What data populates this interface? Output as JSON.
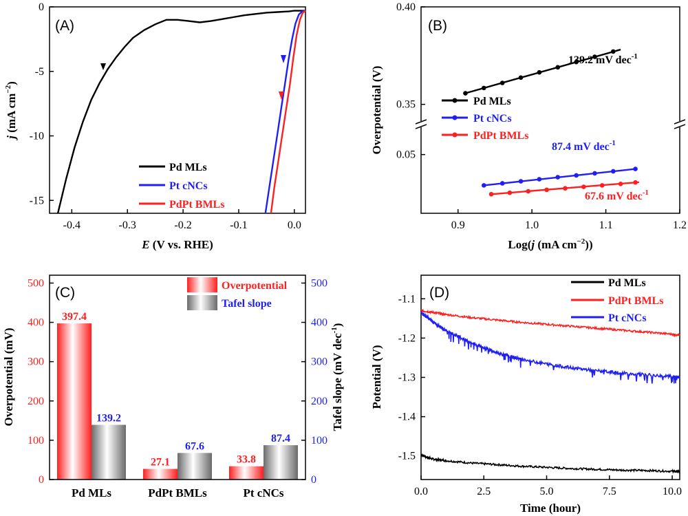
{
  "colors": {
    "black": "#000000",
    "blue": "#1f1ff5",
    "red": "#ff1f1f",
    "gray": "#707070"
  },
  "chart_data": [
    {
      "panel": "(A)",
      "type": "line",
      "xlabel_italic": "E",
      "xlabel_rest": " (V vs. RHE)",
      "ylabel_italic": "j",
      "ylabel_rest": " (mA cm",
      "ylabel_sup": "−2",
      "ylabel_close": ")",
      "xlim": [
        -0.44,
        0.02
      ],
      "ylim": [
        -16,
        0
      ],
      "xticks": [
        -0.4,
        -0.3,
        -0.2,
        -0.1,
        0.0
      ],
      "xtick_labels": [
        "-0.4",
        "-0.3",
        "-0.2",
        "-0.1",
        "0.0"
      ],
      "yticks": [
        0,
        -5,
        -10,
        -15
      ],
      "ytick_labels": [
        "0",
        "-5",
        "-10",
        "-15"
      ],
      "legend_position": "bottom-center",
      "series": [
        {
          "name": "Pd MLs",
          "color": "#000000",
          "x": [
            -0.425,
            -0.41,
            -0.395,
            -0.38,
            -0.365,
            -0.35,
            -0.335,
            -0.32,
            -0.305,
            -0.29,
            -0.27,
            -0.25,
            -0.23,
            -0.21,
            -0.19,
            -0.17,
            -0.15,
            -0.13,
            -0.11,
            -0.09,
            -0.07,
            -0.05,
            -0.03,
            -0.01,
            0.0,
            0.01,
            0.02
          ],
          "y": [
            -16,
            -13.3,
            -10.9,
            -8.9,
            -7.2,
            -5.9,
            -4.8,
            -3.9,
            -3.1,
            -2.4,
            -1.8,
            -1.35,
            -1.0,
            -1.0,
            -1.1,
            -1.2,
            -1.1,
            -0.95,
            -0.8,
            -0.65,
            -0.55,
            -0.45,
            -0.4,
            -0.35,
            -0.3,
            -0.3,
            -0.3
          ]
        },
        {
          "name": "Pt cNCs",
          "color": "#1f1ff5",
          "x": [
            -0.052,
            -0.045,
            -0.038,
            -0.031,
            -0.024,
            -0.017,
            -0.01,
            -0.004,
            0.002,
            0.008,
            0.014,
            0.02
          ],
          "y": [
            -16,
            -14,
            -12,
            -10,
            -8,
            -6,
            -4,
            -2.5,
            -1.3,
            -0.6,
            -0.35,
            -0.3
          ]
        },
        {
          "name": "PdPt BMLs",
          "color": "#ff1f1f",
          "x": [
            -0.042,
            -0.036,
            -0.029,
            -0.022,
            -0.015,
            -0.008,
            -0.002,
            0.004,
            0.01,
            0.015,
            0.02
          ],
          "y": [
            -16,
            -14,
            -12,
            -10,
            -8,
            -6,
            -4,
            -2.2,
            -1.0,
            -0.45,
            -0.3
          ]
        }
      ]
    },
    {
      "panel": "(B)",
      "type": "line",
      "xlabel_pre": "Log(",
      "xlabel_italic": "j",
      "xlabel_rest": " (mA cm",
      "xlabel_sup": "−2",
      "xlabel_close": "))",
      "ylabel": "Overpotential (V)",
      "xlim": [
        0.85,
        1.2
      ],
      "xticks": [
        0.9,
        1.0,
        1.1,
        1.2
      ],
      "xtick_labels": [
        "0.9",
        "1.0",
        "1.1",
        "1.2"
      ],
      "ylim_upper": [
        0.34,
        0.4
      ],
      "ylim_lower": [
        0.03,
        0.06
      ],
      "axis_break": true,
      "ytick_labels": [
        "0.40",
        "0.35",
        "0.05"
      ],
      "legend_position": "center-left",
      "series": [
        {
          "name": "Pd MLs",
          "color": "#000000",
          "slope_label": "139.2 mV dec",
          "slope_sup": "-1",
          "x": [
            0.91,
            0.935,
            0.96,
            0.985,
            1.01,
            1.035,
            1.06,
            1.085,
            1.11
          ],
          "y": [
            0.3557,
            0.3584,
            0.361,
            0.3637,
            0.3664,
            0.369,
            0.3717,
            0.3744,
            0.3771
          ],
          "fit_x": [
            0.91,
            1.12
          ],
          "fit_y": [
            0.3557,
            0.3781
          ]
        },
        {
          "name": "Pt cNCs",
          "color": "#1f1ff5",
          "slope_label": "87.4 mV dec",
          "slope_sup": "-1",
          "x": [
            0.935,
            0.96,
            0.985,
            1.01,
            1.035,
            1.06,
            1.085,
            1.11,
            1.14
          ],
          "y": [
            0.0395,
            0.0402,
            0.0409,
            0.0416,
            0.0423,
            0.0429,
            0.0436,
            0.0443,
            0.0451
          ],
          "fit_x": [
            0.935,
            1.14
          ],
          "fit_y": [
            0.0395,
            0.0451
          ]
        },
        {
          "name": "PdPt BMLs",
          "color": "#ff1f1f",
          "slope_label": "67.6 mV dec",
          "slope_sup": "-1",
          "x": [
            0.945,
            0.97,
            0.995,
            1.02,
            1.045,
            1.07,
            1.095,
            1.12,
            1.14
          ],
          "y": [
            0.0365,
            0.037,
            0.0375,
            0.038,
            0.0385,
            0.039,
            0.0395,
            0.04,
            0.0405
          ],
          "fit_x": [
            0.945,
            1.145
          ],
          "fit_y": [
            0.0365,
            0.0406
          ]
        }
      ]
    },
    {
      "panel": "(C)",
      "type": "bar",
      "categories": [
        "Pd MLs",
        "PdPt BMLs",
        "Pt cNCs"
      ],
      "ylabel": "Overpotential (mV)",
      "ylabel2": "Tafel slope (mV dec",
      "ylabel2_sup": "-1",
      "ylabel2_close": ")",
      "ylim": [
        0,
        520
      ],
      "yticks": [
        0,
        100,
        200,
        300,
        400,
        500
      ],
      "ytick_labels": [
        "0",
        "100",
        "200",
        "300",
        "400",
        "500"
      ],
      "legend_position": "top-right",
      "series": [
        {
          "name": "Overpotential",
          "color": "#ff1f1f",
          "values": [
            397.4,
            27.1,
            33.8
          ],
          "value_labels": [
            "397.4",
            "27.1",
            "33.8"
          ]
        },
        {
          "name": "Tafel slope",
          "color": "#1f1ff5",
          "values": [
            139.2,
            67.6,
            87.4
          ],
          "value_labels": [
            "139.2",
            "67.6",
            "87.4"
          ]
        }
      ]
    },
    {
      "panel": "(D)",
      "type": "line",
      "xlabel": "Time (hour)",
      "ylabel": "Potential (V)",
      "xlim": [
        0,
        10.3
      ],
      "ylim": [
        -1.56,
        -1.04
      ],
      "xticks": [
        0,
        2.5,
        5.0,
        7.5,
        10.0
      ],
      "xtick_labels": [
        "0.0",
        "2.5",
        "5.0",
        "7.5",
        "10.0"
      ],
      "yticks": [
        -1.1,
        -1.2,
        -1.3,
        -1.4,
        -1.5
      ],
      "ytick_labels": [
        "-1.1",
        "-1.2",
        "-1.3",
        "-1.4",
        "-1.5"
      ],
      "legend_position": "top-right",
      "series": [
        {
          "name": "Pd MLs",
          "color": "#000000",
          "x": [
            0,
            0.2,
            0.5,
            1.0,
            2.0,
            3.0,
            4.0,
            5.0,
            6.0,
            7.0,
            8.0,
            9.0,
            10.0,
            10.3
          ],
          "y": [
            -1.497,
            -1.503,
            -1.508,
            -1.512,
            -1.518,
            -1.522,
            -1.526,
            -1.529,
            -1.532,
            -1.534,
            -1.536,
            -1.537,
            -1.539,
            -1.54
          ]
        },
        {
          "name": "PdPt BMLs",
          "color": "#ff1f1f",
          "x": [
            0,
            0.5,
            1.0,
            2.0,
            3.0,
            4.0,
            5.0,
            6.0,
            7.0,
            8.0,
            9.0,
            10.0,
            10.3
          ],
          "y": [
            -1.13,
            -1.135,
            -1.14,
            -1.148,
            -1.154,
            -1.16,
            -1.165,
            -1.17,
            -1.175,
            -1.18,
            -1.185,
            -1.19,
            -1.193
          ]
        },
        {
          "name": "Pt cNCs",
          "color": "#1f1ff5",
          "x": [
            0,
            0.3,
            0.6,
            1.0,
            1.5,
            2.0,
            2.5,
            3.0,
            3.5,
            4.0,
            5.0,
            6.0,
            7.0,
            8.0,
            9.0,
            10.0,
            10.3
          ],
          "y": [
            -1.135,
            -1.15,
            -1.165,
            -1.18,
            -1.197,
            -1.212,
            -1.225,
            -1.237,
            -1.246,
            -1.254,
            -1.266,
            -1.276,
            -1.283,
            -1.289,
            -1.294,
            -1.298,
            -1.3
          ]
        }
      ]
    }
  ]
}
